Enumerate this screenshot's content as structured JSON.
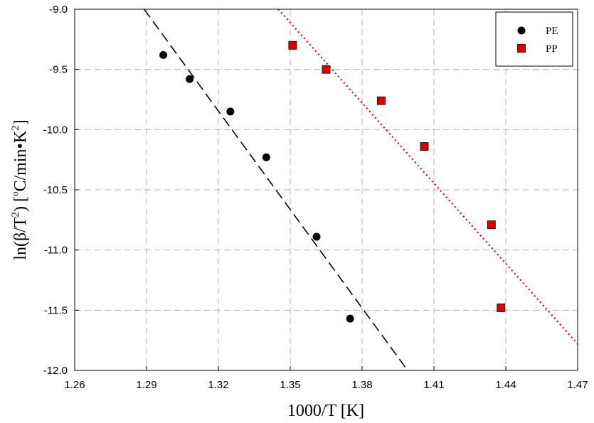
{
  "chart_data": {
    "type": "scatter",
    "xlabel": "1000/T [K]",
    "ylabel": {
      "prefix": "ln(β/T",
      "sup1": "2",
      "mid": ") [",
      "degree": "o",
      "unit": "C/min•K",
      "sup2": "2",
      "suffix": "]"
    },
    "xlim": [
      1.26,
      1.47
    ],
    "ylim": [
      -12.0,
      -9.0
    ],
    "xticks": [
      1.26,
      1.29,
      1.32,
      1.35,
      1.38,
      1.41,
      1.44,
      1.47
    ],
    "yticks": [
      -12.0,
      -11.5,
      -11.0,
      -10.5,
      -10.0,
      -9.5,
      -9.0
    ],
    "xtick_labels": [
      "1.26",
      "1.29",
      "1.32",
      "1.35",
      "1.38",
      "1.41",
      "1.44",
      "1.47"
    ],
    "ytick_labels": [
      "-12.0",
      "-11.5",
      "-11.0",
      "-10.5",
      "-10.0",
      "-9.5",
      "-9.0"
    ],
    "grid": true,
    "legend_position": "top-right",
    "series": [
      {
        "name": "PE",
        "marker": "circle",
        "color": "#000000",
        "points": [
          [
            1.297,
            -9.38
          ],
          [
            1.308,
            -9.58
          ],
          [
            1.325,
            -9.85
          ],
          [
            1.34,
            -10.23
          ],
          [
            1.361,
            -10.89
          ],
          [
            1.375,
            -11.57
          ]
        ],
        "fit_line": {
          "style": "dashed",
          "color": "#000000",
          "points": [
            [
              1.289,
              -9.0
            ],
            [
              1.399,
              -12.0
            ]
          ]
        }
      },
      {
        "name": "PP",
        "marker": "square",
        "color": "#dd0000",
        "points": [
          [
            1.351,
            -9.3
          ],
          [
            1.365,
            -9.5
          ],
          [
            1.388,
            -9.76
          ],
          [
            1.406,
            -10.14
          ],
          [
            1.434,
            -10.79
          ],
          [
            1.438,
            -11.48
          ]
        ],
        "fit_line": {
          "style": "dotted",
          "color": "#dd0000",
          "points": [
            [
              1.345,
              -9.0
            ],
            [
              1.47,
              -11.78
            ]
          ]
        }
      }
    ]
  }
}
